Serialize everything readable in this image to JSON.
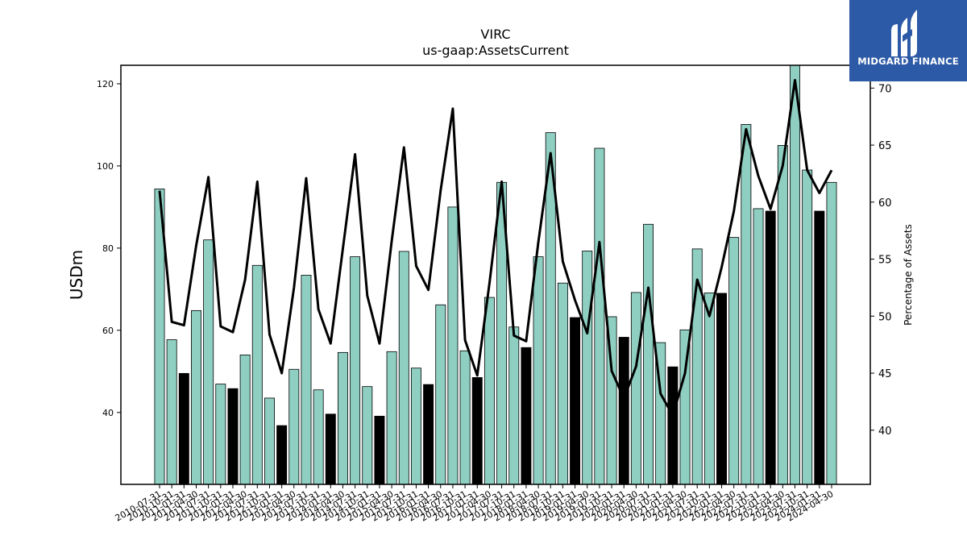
{
  "chart_data": {
    "type": "bar",
    "title": "VIRC",
    "subtitle": "us-gaap:AssetsCurrent",
    "ylabel": "USDm",
    "y2label": "Percentage of Assets",
    "ylim": [
      22.5,
      124.5
    ],
    "y2lim": [
      35.25,
      72.0
    ],
    "yticks": [
      "40",
      "60",
      "80",
      "100",
      "120"
    ],
    "y2ticks": [
      "40",
      "45",
      "50",
      "55",
      "60",
      "65",
      "70"
    ],
    "categories": [
      "2010-07-31",
      "2010-10-31",
      "2011-01-31",
      "2011-04-30",
      "2011-07-31",
      "2011-10-31",
      "2012-01-31",
      "2012-04-30",
      "2012-07-31",
      "2012-10-31",
      "2013-01-31",
      "2013-04-30",
      "2013-07-31",
      "2013-10-31",
      "2014-01-31",
      "2014-04-30",
      "2014-07-31",
      "2014-10-31",
      "2015-01-31",
      "2015-04-30",
      "2015-07-31",
      "2015-10-31",
      "2016-01-31",
      "2016-04-30",
      "2016-07-31",
      "2016-10-31",
      "2017-01-31",
      "2017-04-30",
      "2017-07-31",
      "2017-10-31",
      "2018-01-31",
      "2018-04-30",
      "2018-07-31",
      "2018-10-31",
      "2019-01-31",
      "2019-04-30",
      "2019-07-31",
      "2019-10-31",
      "2020-01-31",
      "2020-04-30",
      "2020-07-31",
      "2020-10-31",
      "2021-01-31",
      "2021-04-30",
      "2021-07-31",
      "2021-10-31",
      "2022-01-31",
      "2022-04-30",
      "2022-07-31",
      "2022-10-31",
      "2023-01-31",
      "2023-04-30",
      "2023-07-31",
      "2023-10-31",
      "2024-01-31",
      "2024-04-30"
    ],
    "series": [
      {
        "kind": "bar",
        "values": [
          94.4,
          57.7,
          49.5,
          64.8,
          82.0,
          46.9,
          45.8,
          54.0,
          75.8,
          43.5,
          36.8,
          50.5,
          73.4,
          45.5,
          39.6,
          54.6,
          77.9,
          46.3,
          39.1,
          54.8,
          79.2,
          50.8,
          46.8,
          66.2,
          90.0,
          55.0,
          48.5,
          68.0,
          96.0,
          60.8,
          55.8,
          77.9,
          108.1,
          71.5,
          63.1,
          79.3,
          104.3,
          63.3,
          58.3,
          69.2,
          85.8,
          57.0,
          51.1,
          60.1,
          79.8,
          69.1,
          69.0,
          82.6,
          110.1,
          89.6,
          89.0,
          105.0,
          124.5,
          99.0,
          89.0,
          96.0
        ],
        "highlight": [
          false,
          false,
          true,
          false,
          false,
          false,
          true,
          false,
          false,
          false,
          true,
          false,
          false,
          false,
          true,
          false,
          false,
          false,
          true,
          false,
          false,
          false,
          true,
          false,
          false,
          false,
          true,
          false,
          false,
          false,
          true,
          false,
          false,
          false,
          true,
          false,
          false,
          false,
          true,
          false,
          false,
          false,
          true,
          false,
          false,
          false,
          true,
          false,
          false,
          false,
          true,
          false,
          false,
          false,
          true,
          false
        ]
      },
      {
        "kind": "line",
        "axis": "right",
        "values": [
          61.0,
          49.5,
          49.2,
          56.2,
          62.2,
          49.1,
          48.6,
          53.2,
          61.8,
          48.4,
          45.0,
          52.5,
          62.1,
          50.6,
          47.6,
          55.9,
          64.2,
          51.8,
          47.6,
          56.6,
          64.8,
          54.4,
          52.3,
          61.0,
          68.2,
          47.9,
          44.8,
          52.9,
          61.8,
          48.3,
          47.8,
          56.5,
          64.3,
          54.8,
          51.4,
          48.5,
          56.5,
          45.2,
          42.8,
          45.6,
          52.5,
          43.2,
          41.3,
          45.0,
          53.2,
          50.0,
          54.3,
          59.2,
          66.4,
          62.3,
          59.4,
          63.2,
          70.7,
          62.8,
          60.8,
          62.8
        ]
      }
    ],
    "colors": {
      "bar": "#8ecfc2",
      "bar_highlight": "#000000",
      "line": "#000000"
    },
    "grid": false,
    "legend": "none"
  },
  "logo": {
    "text": "MIDGARD FINANCE",
    "bg": "#2d5aa6"
  }
}
